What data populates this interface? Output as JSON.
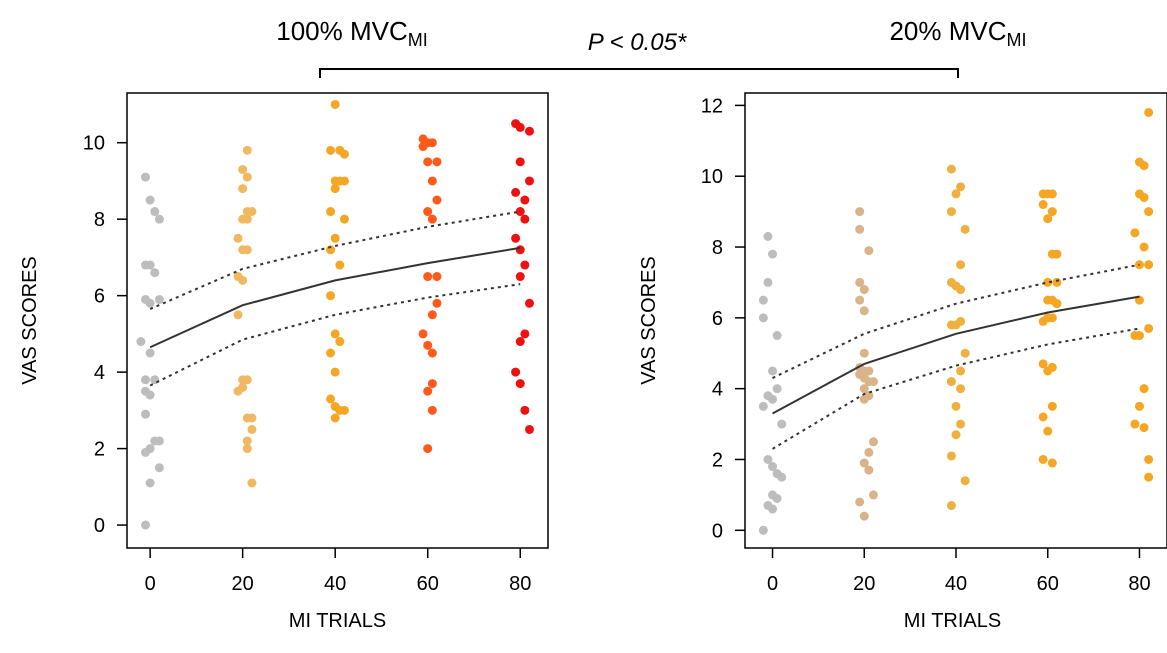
{
  "figure": {
    "comparison_label": "P < 0.05*"
  },
  "chart_data": [
    {
      "type": "scatter",
      "title": "100% MVC",
      "title_subscript": "MI",
      "xlabel": "MI TRIALS",
      "ylabel": "VAS SCORES",
      "xlim": [
        -5,
        86
      ],
      "ylim": [
        -0.6,
        11.3
      ],
      "x_ticks": [
        0,
        20,
        40,
        60,
        80
      ],
      "y_ticks": [
        0,
        2,
        4,
        6,
        8,
        10
      ],
      "groups": [
        {
          "x": 0,
          "color": "#bdbdbd",
          "points": [
            [
              -1,
              9.1
            ],
            [
              0,
              8.5
            ],
            [
              1,
              8.2
            ],
            [
              2,
              8.0
            ],
            [
              -1,
              6.8
            ],
            [
              0,
              6.8
            ],
            [
              1,
              6.6
            ],
            [
              -1,
              5.9
            ],
            [
              0,
              5.8
            ],
            [
              2,
              5.9
            ],
            [
              -2,
              4.8
            ],
            [
              0,
              4.5
            ],
            [
              -1,
              3.8
            ],
            [
              1,
              3.8
            ],
            [
              -1,
              3.5
            ],
            [
              0,
              3.4
            ],
            [
              -1,
              2.9
            ],
            [
              1,
              2.2
            ],
            [
              2,
              2.2
            ],
            [
              0,
              2.0
            ],
            [
              -1,
              1.9
            ],
            [
              2,
              1.5
            ],
            [
              0,
              1.1
            ],
            [
              -1,
              0.0
            ]
          ]
        },
        {
          "x": 20,
          "color": "#f0b860",
          "points": [
            [
              21,
              9.8
            ],
            [
              20,
              9.3
            ],
            [
              21,
              9.1
            ],
            [
              20,
              8.8
            ],
            [
              21,
              8.2
            ],
            [
              22,
              8.2
            ],
            [
              20,
              8.0
            ],
            [
              21,
              8.0
            ],
            [
              19,
              7.5
            ],
            [
              20,
              7.2
            ],
            [
              21,
              7.2
            ],
            [
              19,
              6.5
            ],
            [
              20,
              6.4
            ],
            [
              19,
              5.5
            ],
            [
              20,
              3.8
            ],
            [
              21,
              3.8
            ],
            [
              20,
              3.6
            ],
            [
              19,
              3.5
            ],
            [
              21,
              2.8
            ],
            [
              22,
              2.8
            ],
            [
              22,
              2.5
            ],
            [
              21,
              2.2
            ],
            [
              21,
              2.0
            ],
            [
              22,
              1.1
            ]
          ]
        },
        {
          "x": 40,
          "color": "#f5a623",
          "points": [
            [
              40,
              11.0
            ],
            [
              39,
              9.8
            ],
            [
              41,
              9.8
            ],
            [
              42,
              9.7
            ],
            [
              40,
              9.0
            ],
            [
              41,
              9.0
            ],
            [
              42,
              9.0
            ],
            [
              40,
              8.8
            ],
            [
              39,
              8.2
            ],
            [
              42,
              8.0
            ],
            [
              40,
              7.5
            ],
            [
              39,
              7.2
            ],
            [
              41,
              6.8
            ],
            [
              39,
              6.0
            ],
            [
              40,
              5.0
            ],
            [
              41,
              4.8
            ],
            [
              39,
              4.5
            ],
            [
              40,
              4.0
            ],
            [
              39,
              3.3
            ],
            [
              40,
              3.1
            ],
            [
              41,
              3.0
            ],
            [
              42,
              3.0
            ],
            [
              40,
              2.8
            ]
          ]
        },
        {
          "x": 60,
          "color": "#ff5a1a",
          "points": [
            [
              59,
              10.1
            ],
            [
              60,
              10.0
            ],
            [
              61,
              10.0
            ],
            [
              59,
              9.9
            ],
            [
              60,
              9.5
            ],
            [
              62,
              9.5
            ],
            [
              61,
              9.0
            ],
            [
              62,
              8.5
            ],
            [
              60,
              8.2
            ],
            [
              61,
              8.0
            ],
            [
              60,
              6.5
            ],
            [
              62,
              6.5
            ],
            [
              62,
              5.8
            ],
            [
              61,
              5.5
            ],
            [
              59,
              5.0
            ],
            [
              60,
              4.7
            ],
            [
              61,
              4.5
            ],
            [
              61,
              3.7
            ],
            [
              60,
              3.5
            ],
            [
              61,
              3.0
            ],
            [
              60,
              2.0
            ]
          ]
        },
        {
          "x": 80,
          "color": "#f01010",
          "points": [
            [
              79,
              10.5
            ],
            [
              80,
              10.4
            ],
            [
              82,
              10.3
            ],
            [
              80,
              9.5
            ],
            [
              82,
              9.0
            ],
            [
              79,
              8.7
            ],
            [
              81,
              8.5
            ],
            [
              80,
              8.2
            ],
            [
              81,
              8.0
            ],
            [
              79,
              7.5
            ],
            [
              80,
              7.2
            ],
            [
              81,
              6.8
            ],
            [
              80,
              6.5
            ],
            [
              82,
              5.8
            ],
            [
              81,
              5.0
            ],
            [
              80,
              4.8
            ],
            [
              79,
              4.0
            ],
            [
              80,
              3.7
            ],
            [
              81,
              3.0
            ],
            [
              82,
              2.5
            ]
          ]
        }
      ],
      "fit": {
        "x": [
          0,
          20,
          40,
          60,
          80
        ],
        "mean": [
          4.65,
          5.75,
          6.4,
          6.85,
          7.25
        ],
        "upper": [
          5.65,
          6.7,
          7.3,
          7.8,
          8.2
        ],
        "lower": [
          3.65,
          4.85,
          5.5,
          5.95,
          6.3
        ]
      }
    },
    {
      "type": "scatter",
      "title": "20% MVC",
      "title_subscript": "MI",
      "xlabel": "MI TRIALS",
      "ylabel": "VAS SCORES",
      "xlim": [
        -6,
        86
      ],
      "ylim": [
        -0.5,
        12.35
      ],
      "x_ticks": [
        0,
        20,
        40,
        60,
        80
      ],
      "y_ticks": [
        0,
        2,
        4,
        6,
        8,
        10,
        12
      ],
      "groups": [
        {
          "x": 0,
          "color": "#bdbdbd",
          "points": [
            [
              -1,
              8.3
            ],
            [
              0,
              7.8
            ],
            [
              -1,
              7.0
            ],
            [
              -2,
              6.5
            ],
            [
              -2,
              6.0
            ],
            [
              1,
              5.5
            ],
            [
              0,
              4.5
            ],
            [
              1,
              4.0
            ],
            [
              -1,
              3.8
            ],
            [
              0,
              3.7
            ],
            [
              -2,
              3.5
            ],
            [
              2,
              3.0
            ],
            [
              -1,
              2.0
            ],
            [
              0,
              1.8
            ],
            [
              1,
              1.6
            ],
            [
              2,
              1.5
            ],
            [
              0,
              1.0
            ],
            [
              1,
              0.9
            ],
            [
              -1,
              0.7
            ],
            [
              0,
              0.6
            ],
            [
              -2,
              0.0
            ]
          ]
        },
        {
          "x": 20,
          "color": "#d9b48a",
          "points": [
            [
              19,
              9.0
            ],
            [
              19,
              8.5
            ],
            [
              21,
              7.9
            ],
            [
              19,
              7.0
            ],
            [
              20,
              6.8
            ],
            [
              19,
              6.5
            ],
            [
              20,
              6.2
            ],
            [
              20,
              5.0
            ],
            [
              19,
              4.6
            ],
            [
              20,
              4.5
            ],
            [
              21,
              4.5
            ],
            [
              19,
              4.4
            ],
            [
              20,
              4.3
            ],
            [
              21,
              4.2
            ],
            [
              22,
              4.2
            ],
            [
              20,
              4.0
            ],
            [
              21,
              3.8
            ],
            [
              20,
              3.7
            ],
            [
              22,
              2.5
            ],
            [
              21,
              2.2
            ],
            [
              20,
              1.9
            ],
            [
              21,
              1.7
            ],
            [
              22,
              1.0
            ],
            [
              19,
              0.8
            ],
            [
              20,
              0.4
            ]
          ]
        },
        {
          "x": 40,
          "color": "#f0b040",
          "points": [
            [
              39,
              10.2
            ],
            [
              41,
              9.7
            ],
            [
              40,
              9.5
            ],
            [
              39,
              9.0
            ],
            [
              42,
              8.5
            ],
            [
              41,
              7.5
            ],
            [
              39,
              7.0
            ],
            [
              40,
              6.9
            ],
            [
              41,
              6.8
            ],
            [
              39,
              5.8
            ],
            [
              41,
              5.9
            ],
            [
              40,
              5.8
            ],
            [
              42,
              5.0
            ],
            [
              41,
              4.5
            ],
            [
              39,
              4.2
            ],
            [
              41,
              4.0
            ],
            [
              40,
              3.5
            ],
            [
              41,
              3.0
            ],
            [
              40,
              2.7
            ],
            [
              42,
              1.4
            ],
            [
              39,
              2.1
            ],
            [
              39,
              0.7
            ]
          ]
        },
        {
          "x": 60,
          "color": "#f5a623",
          "points": [
            [
              59,
              9.5
            ],
            [
              60,
              9.5
            ],
            [
              61,
              9.5
            ],
            [
              59,
              9.2
            ],
            [
              61,
              9.0
            ],
            [
              60,
              8.8
            ],
            [
              61,
              7.8
            ],
            [
              62,
              7.8
            ],
            [
              60,
              7.0
            ],
            [
              62,
              7.0
            ],
            [
              60,
              6.5
            ],
            [
              61,
              6.5
            ],
            [
              62,
              6.4
            ],
            [
              60,
              6.0
            ],
            [
              61,
              6.0
            ],
            [
              59,
              5.9
            ],
            [
              59,
              4.7
            ],
            [
              60,
              4.5
            ],
            [
              61,
              4.6
            ],
            [
              61,
              3.5
            ],
            [
              59,
              3.2
            ],
            [
              60,
              2.8
            ],
            [
              59,
              2.0
            ],
            [
              61,
              1.9
            ]
          ]
        },
        {
          "x": 80,
          "color": "#f5a623",
          "points": [
            [
              82,
              11.8
            ],
            [
              80,
              10.4
            ],
            [
              81,
              10.3
            ],
            [
              80,
              9.5
            ],
            [
              81,
              9.4
            ],
            [
              82,
              9.0
            ],
            [
              79,
              8.4
            ],
            [
              81,
              8.0
            ],
            [
              82,
              7.5
            ],
            [
              80,
              7.5
            ],
            [
              80,
              6.5
            ],
            [
              82,
              5.7
            ],
            [
              79,
              5.5
            ],
            [
              80,
              5.5
            ],
            [
              81,
              4.0
            ],
            [
              80,
              3.5
            ],
            [
              79,
              3.0
            ],
            [
              81,
              2.9
            ],
            [
              82,
              2.0
            ],
            [
              82,
              1.5
            ]
          ]
        }
      ],
      "fit": {
        "x": [
          0,
          20,
          40,
          60,
          80
        ],
        "mean": [
          3.3,
          4.7,
          5.55,
          6.15,
          6.6
        ],
        "upper": [
          4.3,
          5.55,
          6.4,
          7.0,
          7.5
        ],
        "lower": [
          2.3,
          3.85,
          4.65,
          5.25,
          5.7
        ]
      }
    }
  ]
}
